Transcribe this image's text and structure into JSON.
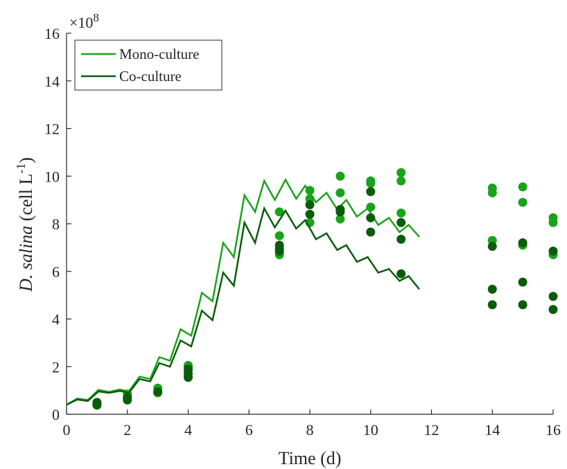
{
  "chart_data": {
    "type": "line",
    "xlabel": "Time (d)",
    "ylabel": {
      "italic": "D. salina",
      "roman": " (cell L",
      "sup": "-1",
      "close": ")"
    },
    "xlim": [
      0,
      16
    ],
    "ylim": [
      0,
      16
    ],
    "xticks": [
      0,
      2,
      4,
      6,
      8,
      10,
      12,
      14,
      16
    ],
    "yticks": [
      0,
      2,
      4,
      6,
      8,
      10,
      12,
      14,
      16
    ],
    "y_multiplier": {
      "base": "×10",
      "exp": "8"
    },
    "grid": false,
    "legend_position": "top-left",
    "series": [
      {
        "name": "Mono-culture",
        "color": "#1aa31a",
        "line": [
          [
            0,
            0.4
          ],
          [
            0.35,
            0.66
          ],
          [
            0.7,
            0.6
          ],
          [
            1.05,
            1.02
          ],
          [
            1.4,
            0.94
          ],
          [
            1.75,
            1.04
          ],
          [
            2.05,
            0.96
          ],
          [
            2.4,
            1.58
          ],
          [
            2.75,
            1.48
          ],
          [
            3.05,
            2.4
          ],
          [
            3.4,
            2.25
          ],
          [
            3.75,
            3.57
          ],
          [
            4.1,
            3.3
          ],
          [
            4.45,
            5.1
          ],
          [
            4.8,
            4.75
          ],
          [
            5.15,
            7.2
          ],
          [
            5.5,
            6.6
          ],
          [
            5.85,
            9.2
          ],
          [
            6.2,
            8.5
          ],
          [
            6.5,
            9.8
          ],
          [
            6.85,
            9.0
          ],
          [
            7.2,
            9.85
          ],
          [
            7.55,
            9.05
          ],
          [
            7.85,
            9.6
          ],
          [
            8.2,
            8.9
          ],
          [
            8.55,
            9.3
          ],
          [
            8.9,
            8.6
          ],
          [
            9.2,
            9.0
          ],
          [
            9.55,
            8.3
          ],
          [
            9.9,
            8.65
          ],
          [
            10.25,
            7.95
          ],
          [
            10.6,
            8.25
          ],
          [
            10.95,
            7.65
          ],
          [
            11.25,
            7.95
          ],
          [
            11.6,
            7.45
          ]
        ],
        "points": [
          [
            1,
            0.38
          ],
          [
            1,
            0.45
          ],
          [
            2,
            0.72
          ],
          [
            2,
            0.85
          ],
          [
            3,
            0.9
          ],
          [
            3,
            1.1
          ],
          [
            4,
            1.85
          ],
          [
            4,
            2.05
          ],
          [
            4,
            2.0
          ],
          [
            7,
            8.5
          ],
          [
            7,
            7.5
          ],
          [
            7,
            6.7
          ],
          [
            8,
            9.4
          ],
          [
            8,
            9.05
          ],
          [
            8,
            8.05
          ],
          [
            9,
            10.0
          ],
          [
            9,
            9.3
          ],
          [
            9,
            8.2
          ],
          [
            10,
            9.8
          ],
          [
            10,
            9.7
          ],
          [
            10,
            8.7
          ],
          [
            11,
            10.15
          ],
          [
            11,
            9.8
          ],
          [
            11,
            8.45
          ],
          [
            14,
            9.5
          ],
          [
            14,
            9.3
          ],
          [
            14,
            7.3
          ],
          [
            15,
            9.55
          ],
          [
            15,
            8.9
          ],
          [
            15,
            7.1
          ],
          [
            16,
            8.25
          ],
          [
            16,
            8.05
          ],
          [
            16,
            6.7
          ]
        ]
      },
      {
        "name": "Co-culture",
        "color": "#0a5c0a",
        "line": [
          [
            0,
            0.4
          ],
          [
            0.35,
            0.62
          ],
          [
            0.7,
            0.56
          ],
          [
            1.05,
            0.96
          ],
          [
            1.4,
            0.9
          ],
          [
            1.75,
            0.98
          ],
          [
            2.05,
            0.9
          ],
          [
            2.4,
            1.48
          ],
          [
            2.75,
            1.38
          ],
          [
            3.05,
            2.15
          ],
          [
            3.4,
            2.0
          ],
          [
            3.75,
            3.1
          ],
          [
            4.1,
            2.85
          ],
          [
            4.45,
            4.35
          ],
          [
            4.8,
            3.95
          ],
          [
            5.15,
            5.95
          ],
          [
            5.5,
            5.4
          ],
          [
            5.85,
            8.05
          ],
          [
            6.2,
            7.2
          ],
          [
            6.5,
            8.65
          ],
          [
            6.85,
            7.85
          ],
          [
            7.2,
            8.55
          ],
          [
            7.55,
            7.8
          ],
          [
            7.85,
            8.15
          ],
          [
            8.2,
            7.35
          ],
          [
            8.55,
            7.6
          ],
          [
            8.9,
            6.9
          ],
          [
            9.2,
            7.1
          ],
          [
            9.55,
            6.4
          ],
          [
            9.9,
            6.6
          ],
          [
            10.25,
            5.95
          ],
          [
            10.6,
            6.1
          ],
          [
            10.95,
            5.6
          ],
          [
            11.25,
            5.8
          ],
          [
            11.6,
            5.25
          ]
        ],
        "points": [
          [
            1,
            0.4
          ],
          [
            1,
            0.5
          ],
          [
            2,
            0.6
          ],
          [
            2,
            0.7
          ],
          [
            3,
            0.95
          ],
          [
            4,
            1.55
          ],
          [
            4,
            1.7
          ],
          [
            4,
            1.9
          ],
          [
            7,
            7.1
          ],
          [
            7,
            6.95
          ],
          [
            7,
            6.85
          ],
          [
            8,
            8.8
          ],
          [
            8,
            8.4
          ],
          [
            9,
            8.6
          ],
          [
            9,
            8.5
          ],
          [
            10,
            9.35
          ],
          [
            10,
            8.25
          ],
          [
            10,
            7.65
          ],
          [
            11,
            8.05
          ],
          [
            11,
            7.35
          ],
          [
            11,
            5.9
          ],
          [
            14,
            7.05
          ],
          [
            14,
            5.25
          ],
          [
            14,
            4.6
          ],
          [
            15,
            7.2
          ],
          [
            15,
            5.55
          ],
          [
            15,
            4.6
          ],
          [
            16,
            6.85
          ],
          [
            16,
            4.95
          ],
          [
            16,
            4.4
          ]
        ]
      }
    ]
  }
}
